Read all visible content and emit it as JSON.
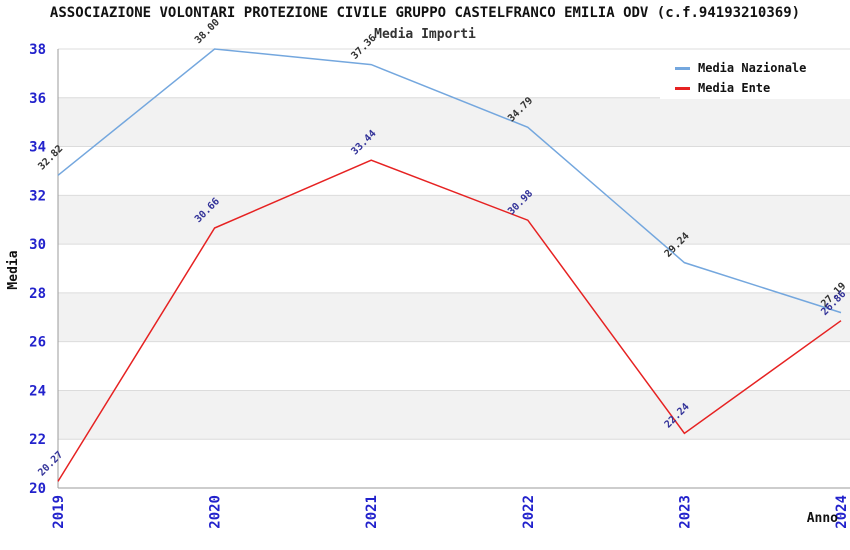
{
  "title": "ASSOCIAZIONE VOLONTARI PROTEZIONE CIVILE GRUPPO CASTELFRANCO EMILIA ODV (c.f.94193210369)",
  "subtitle": "Media Importi",
  "chart_data": {
    "type": "line",
    "title": "Media Importi",
    "xlabel": "Anno",
    "ylabel": "Media",
    "x": [
      "2019",
      "2020",
      "2021",
      "2022",
      "2023",
      "2024"
    ],
    "series": [
      {
        "name": "Media Nazionale",
        "color": "#74A7DE",
        "label_color": "#333333",
        "values": [
          32.82,
          38.0,
          37.36,
          34.79,
          29.24,
          27.19
        ]
      },
      {
        "name": "Media Ente",
        "color": "#E62222",
        "label_color": "#333399",
        "values": [
          20.27,
          30.66,
          33.44,
          30.98,
          22.24,
          26.86
        ]
      }
    ],
    "ylim": [
      20,
      38
    ],
    "y_tick_step": 2,
    "grid": true,
    "legend_position": "top-right",
    "band_colors": [
      "#FFFFFF",
      "#F2F2F2"
    ],
    "grid_color": "#DCDCDC",
    "axis_color": "#9B9B9B",
    "tick_label_color": "#2222CC"
  }
}
